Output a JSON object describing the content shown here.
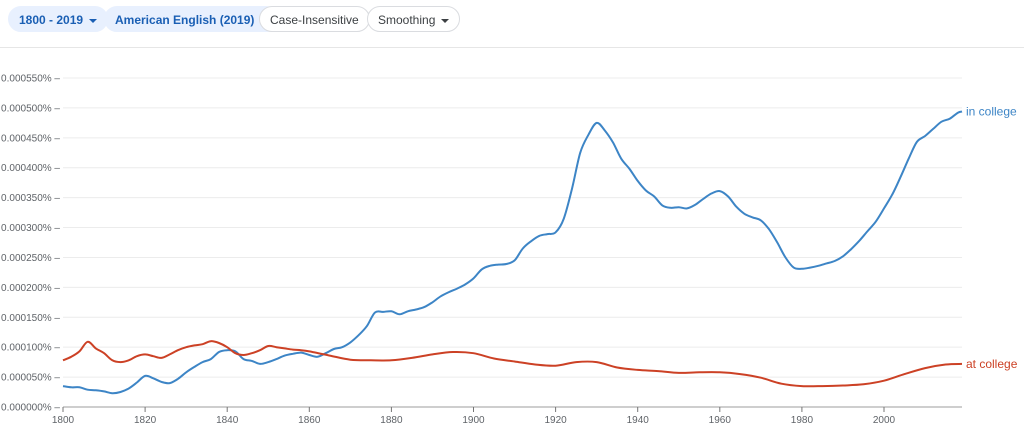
{
  "toolbar": {
    "year_range": "1800 - 2019",
    "corpus": "American English (2019)",
    "case": "Case-Insensitive",
    "smoothing": "Smoothing",
    "caret_icon": "chevron-down-icon"
  },
  "chart_data": {
    "type": "line",
    "xlim": [
      1800,
      2019
    ],
    "ylim": [
      0,
      5.5e-06
    ],
    "grid": true,
    "legend": "end-of-line labels",
    "x_ticks": [
      1800,
      1820,
      1840,
      1860,
      1880,
      1900,
      1920,
      1940,
      1960,
      1980,
      2000
    ],
    "y_ticks": [
      {
        "value": 0,
        "label": "0.000000%"
      },
      {
        "value": 5e-07,
        "label": "0.000050%"
      },
      {
        "value": 1e-06,
        "label": "0.000100%"
      },
      {
        "value": 1.5e-06,
        "label": "0.000150%"
      },
      {
        "value": 2e-06,
        "label": "0.000200%"
      },
      {
        "value": 2.5e-06,
        "label": "0.000250%"
      },
      {
        "value": 3e-06,
        "label": "0.000300%"
      },
      {
        "value": 3.5e-06,
        "label": "0.000350%"
      },
      {
        "value": 4e-06,
        "label": "0.000400%"
      },
      {
        "value": 4.5e-06,
        "label": "0.000450%"
      },
      {
        "value": 5e-06,
        "label": "0.000500%"
      },
      {
        "value": 5.5e-06,
        "label": "0.000550%"
      }
    ],
    "series": [
      {
        "name": "in college",
        "color": "#3d85c6",
        "x": [
          1800,
          1802,
          1804,
          1806,
          1808,
          1810,
          1812,
          1814,
          1816,
          1818,
          1820,
          1822,
          1824,
          1826,
          1828,
          1830,
          1832,
          1834,
          1836,
          1838,
          1840,
          1842,
          1844,
          1846,
          1848,
          1850,
          1852,
          1854,
          1856,
          1858,
          1860,
          1862,
          1864,
          1866,
          1868,
          1870,
          1872,
          1874,
          1876,
          1878,
          1880,
          1882,
          1884,
          1886,
          1888,
          1890,
          1892,
          1894,
          1896,
          1898,
          1900,
          1902,
          1904,
          1906,
          1908,
          1910,
          1912,
          1914,
          1916,
          1918,
          1920,
          1922,
          1924,
          1926,
          1928,
          1930,
          1932,
          1934,
          1936,
          1938,
          1940,
          1942,
          1944,
          1946,
          1948,
          1950,
          1952,
          1954,
          1956,
          1958,
          1960,
          1962,
          1964,
          1966,
          1968,
          1970,
          1972,
          1974,
          1976,
          1978,
          1980,
          1982,
          1984,
          1986,
          1988,
          1990,
          1992,
          1994,
          1996,
          1998,
          2000,
          2002,
          2004,
          2006,
          2008,
          2010,
          2012,
          2014,
          2016,
          2018,
          2019
        ],
        "y": [
          3.5e-07,
          3.3e-07,
          3.3e-07,
          2.9e-07,
          2.8e-07,
          2.6e-07,
          2.3e-07,
          2.5e-07,
          3.1e-07,
          4.1e-07,
          5.2e-07,
          4.8e-07,
          4.2e-07,
          4e-07,
          4.7e-07,
          5.8e-07,
          6.7e-07,
          7.5e-07,
          8e-07,
          9.2e-07,
          9.5e-07,
          9.3e-07,
          8e-07,
          7.7e-07,
          7.2e-07,
          7.5e-07,
          8e-07,
          8.6e-07,
          8.9e-07,
          9.1e-07,
          8.7e-07,
          8.4e-07,
          9e-07,
          9.7e-07,
          1e-06,
          1.08e-06,
          1.2e-06,
          1.35e-06,
          1.58e-06,
          1.59e-06,
          1.6e-06,
          1.55e-06,
          1.6e-06,
          1.63e-06,
          1.67e-06,
          1.75e-06,
          1.85e-06,
          1.92e-06,
          1.98e-06,
          2.05e-06,
          2.15e-06,
          2.3e-06,
          2.36e-06,
          2.38e-06,
          2.39e-06,
          2.45e-06,
          2.65e-06,
          2.77e-06,
          2.86e-06,
          2.89e-06,
          2.92e-06,
          3.15e-06,
          3.65e-06,
          4.25e-06,
          4.55e-06,
          4.75e-06,
          4.62e-06,
          4.42e-06,
          4.15e-06,
          3.98e-06,
          3.78e-06,
          3.62e-06,
          3.52e-06,
          3.37e-06,
          3.33e-06,
          3.34e-06,
          3.32e-06,
          3.38e-06,
          3.48e-06,
          3.57e-06,
          3.61e-06,
          3.52e-06,
          3.35e-06,
          3.23e-06,
          3.17e-06,
          3.12e-06,
          2.97e-06,
          2.75e-06,
          2.5e-06,
          2.33e-06,
          2.31e-06,
          2.33e-06,
          2.36e-06,
          2.4e-06,
          2.44e-06,
          2.52e-06,
          2.64e-06,
          2.78e-06,
          2.94e-06,
          3.1e-06,
          3.32e-06,
          3.55e-06,
          3.84e-06,
          4.15e-06,
          4.43e-06,
          4.53e-06,
          4.65e-06,
          4.77e-06,
          4.82e-06,
          4.92e-06,
          4.94e-06
        ]
      },
      {
        "name": "at college",
        "color": "#cc4125",
        "x": [
          1800,
          1802,
          1804,
          1806,
          1808,
          1810,
          1812,
          1814,
          1816,
          1818,
          1820,
          1822,
          1824,
          1826,
          1828,
          1830,
          1832,
          1834,
          1836,
          1838,
          1840,
          1842,
          1844,
          1846,
          1848,
          1850,
          1852,
          1854,
          1856,
          1858,
          1860,
          1865,
          1870,
          1875,
          1880,
          1885,
          1890,
          1895,
          1900,
          1905,
          1910,
          1915,
          1920,
          1925,
          1930,
          1935,
          1940,
          1945,
          1950,
          1955,
          1960,
          1965,
          1970,
          1975,
          1980,
          1985,
          1990,
          1995,
          2000,
          2005,
          2010,
          2015,
          2019
        ],
        "y": [
          7.8e-07,
          8.4e-07,
          9.3e-07,
          1.09e-06,
          9.8e-07,
          9e-07,
          7.8e-07,
          7.5e-07,
          7.8e-07,
          8.5e-07,
          8.8e-07,
          8.5e-07,
          8.2e-07,
          8.8e-07,
          9.5e-07,
          1e-06,
          1.03e-06,
          1.05e-06,
          1.1e-06,
          1.07e-06,
          1e-06,
          9e-07,
          8.7e-07,
          9e-07,
          9.5e-07,
          1.02e-06,
          1e-06,
          9.8e-07,
          9.6e-07,
          9.5e-07,
          9.3e-07,
          8.6e-07,
          7.9e-07,
          7.8e-07,
          7.8e-07,
          8.2e-07,
          8.8e-07,
          9.2e-07,
          9e-07,
          8.1e-07,
          7.6e-07,
          7.1e-07,
          6.9e-07,
          7.5e-07,
          7.5e-07,
          6.6e-07,
          6.2e-07,
          6e-07,
          5.7e-07,
          5.8e-07,
          5.8e-07,
          5.5e-07,
          4.9e-07,
          3.9e-07,
          3.5e-07,
          3.5e-07,
          3.6e-07,
          3.8e-07,
          4.4e-07,
          5.5e-07,
          6.5e-07,
          7.1e-07,
          7.2e-07
        ]
      }
    ]
  }
}
